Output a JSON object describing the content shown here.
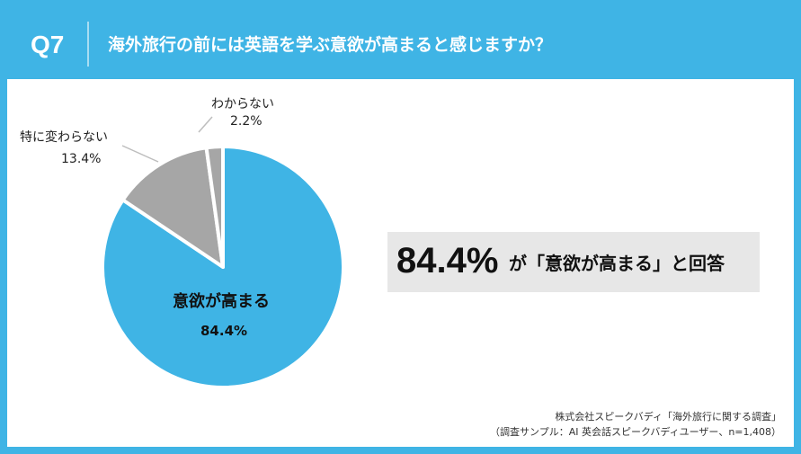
{
  "header": {
    "question_number": "Q7",
    "question": "海外旅行の前には英語を学ぶ意欲が高まると感じますか？"
  },
  "chart_data": {
    "type": "pie",
    "title": "",
    "slices": [
      {
        "label": "意欲が高まる",
        "value": 84.4,
        "value_label": "84.4%",
        "color": "#3fb4e5"
      },
      {
        "label": "特に変わらない",
        "value": 13.4,
        "value_label": "13.4%",
        "color": "#a6a6a6"
      },
      {
        "label": "わからない",
        "value": 2.2,
        "value_label": "2.2%",
        "color": "#a6a6a6"
      }
    ]
  },
  "callout": {
    "percent": "84.4%",
    "text": "が「意欲が高まる」と回答"
  },
  "source": {
    "line1": "株式会社スピークバディ「海外旅行に関する調査」",
    "line2": "（調査サンプル：AI 英会話スピークバディユーザー、n=1,408）"
  },
  "colors": {
    "brand_blue": "#3fb4e5",
    "gray_slice": "#a6a6a6",
    "callout_bg": "#e7e7e7"
  }
}
